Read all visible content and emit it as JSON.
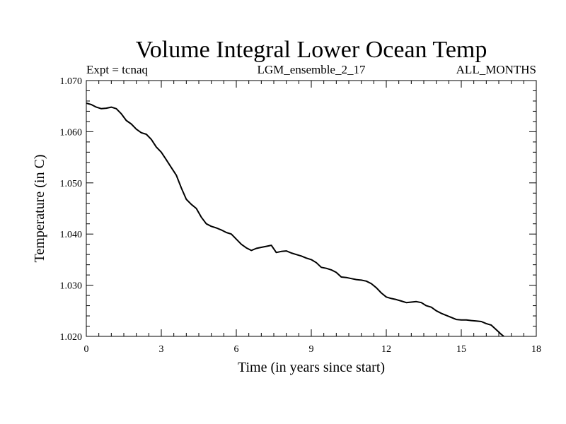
{
  "chart_data": {
    "type": "line",
    "title": "Volume Integral Lower Ocean Temp",
    "subtitle_left": "Expt = tcnaq",
    "subtitle_center": "LGM_ensemble_2_17",
    "subtitle_right": "ALL_MONTHS",
    "xlabel": "Time (in years since start)",
    "ylabel": "Temperature (in C)",
    "xlim": [
      0,
      18
    ],
    "ylim": [
      1.02,
      1.07
    ],
    "x_ticks": [
      0,
      3,
      6,
      9,
      12,
      15,
      18
    ],
    "x_tick_labels": [
      "0",
      "3",
      "6",
      "9",
      "12",
      "15",
      "18"
    ],
    "y_ticks": [
      1.02,
      1.03,
      1.04,
      1.05,
      1.06,
      1.07
    ],
    "y_tick_labels": [
      "1.020",
      "1.030",
      "1.040",
      "1.050",
      "1.060",
      "1.070"
    ],
    "x_minor_step": 0.5,
    "y_minor_step": 0.002,
    "grid": false,
    "line_color": "#000000",
    "series": [
      {
        "name": "Volume Integral Lower Ocean Temp",
        "x": [
          0,
          0.2,
          0.4,
          0.6,
          0.8,
          1.0,
          1.2,
          1.4,
          1.6,
          1.8,
          2.0,
          2.2,
          2.4,
          2.6,
          2.8,
          3.0,
          3.2,
          3.4,
          3.6,
          3.8,
          4.0,
          4.2,
          4.4,
          4.6,
          4.8,
          5.0,
          5.2,
          5.4,
          5.6,
          5.8,
          6.0,
          6.2,
          6.4,
          6.6,
          6.8,
          7.0,
          7.2,
          7.4,
          7.6,
          7.8,
          8.0,
          8.2,
          8.4,
          8.6,
          8.8,
          9.0,
          9.2,
          9.4,
          9.6,
          9.8,
          10.0,
          10.2,
          10.4,
          10.6,
          10.8,
          11.0,
          11.2,
          11.4,
          11.6,
          11.8,
          12.0,
          12.2,
          12.4,
          12.6,
          12.8,
          13.0,
          13.2,
          13.4,
          13.6,
          13.8,
          14.0,
          14.2,
          14.4,
          14.6,
          14.8,
          15.0,
          15.2,
          15.4,
          15.6,
          15.8,
          16.0,
          16.2,
          16.4,
          16.6,
          16.7
        ],
        "values": [
          1.0656,
          1.0653,
          1.0648,
          1.0645,
          1.0646,
          1.0648,
          1.0645,
          1.0635,
          1.0622,
          1.0615,
          1.0605,
          1.0598,
          1.0595,
          1.0585,
          1.057,
          1.056,
          1.0545,
          1.053,
          1.0515,
          1.049,
          1.0468,
          1.0458,
          1.045,
          1.0433,
          1.042,
          1.0415,
          1.0412,
          1.0408,
          1.0403,
          1.04,
          1.039,
          1.038,
          1.0373,
          1.0368,
          1.0372,
          1.0374,
          1.0376,
          1.0378,
          1.0364,
          1.0366,
          1.0367,
          1.0363,
          1.036,
          1.0357,
          1.0353,
          1.035,
          1.0344,
          1.0335,
          1.0333,
          1.033,
          1.0325,
          1.0316,
          1.0315,
          1.0313,
          1.0311,
          1.031,
          1.0308,
          1.0303,
          1.0295,
          1.0285,
          1.0277,
          1.0274,
          1.0272,
          1.0269,
          1.0266,
          1.0267,
          1.0268,
          1.0266,
          1.026,
          1.0257,
          1.025,
          1.0245,
          1.0241,
          1.0237,
          1.0233,
          1.0232,
          1.0232,
          1.0231,
          1.023,
          1.0229,
          1.0225,
          1.0222,
          1.0213,
          1.0204,
          1.02
        ]
      }
    ]
  }
}
